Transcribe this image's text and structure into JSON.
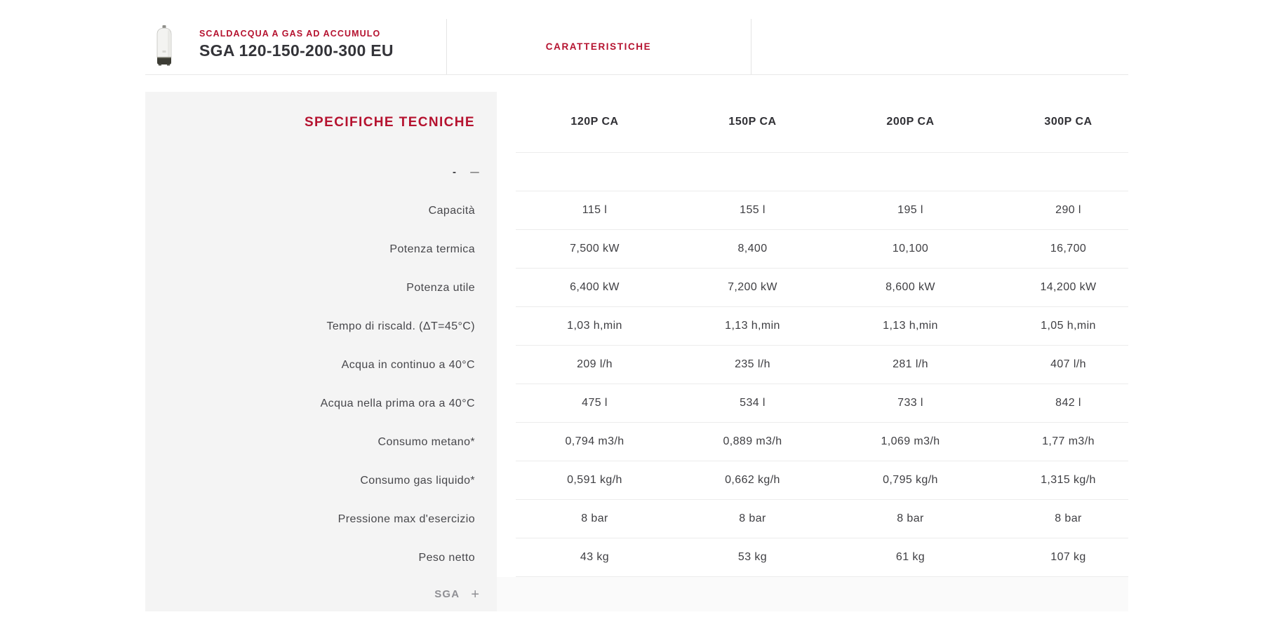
{
  "header": {
    "eyebrow": "SCALDACQUA A GAS AD ACCUMULO",
    "title": "SGA 120-150-200-300 EU",
    "tab": "CARATTERISTICHE"
  },
  "panel": {
    "title": "SPECIFICHE TECNICHE",
    "top_toggle_label": "-",
    "bottom_toggle_label": "SGA",
    "expand_glyph": "+"
  },
  "table": {
    "columns": [
      "120P CA",
      "150P CA",
      "200P CA",
      "300P CA"
    ],
    "rows": [
      {
        "label": "Capacità",
        "values": [
          "115 l",
          "155 l",
          "195 l",
          "290 l"
        ]
      },
      {
        "label": "Potenza termica",
        "values": [
          "7,500 kW",
          "8,400",
          "10,100",
          "16,700"
        ]
      },
      {
        "label": "Potenza utile",
        "values": [
          "6,400 kW",
          "7,200 kW",
          "8,600 kW",
          "14,200 kW"
        ]
      },
      {
        "label": "Tempo di riscald. (ΔT=45°C)",
        "values": [
          "1,03 h,min",
          "1,13 h,min",
          "1,13 h,min",
          "1,05 h,min"
        ]
      },
      {
        "label": "Acqua in continuo a 40°C",
        "values": [
          "209 l/h",
          "235 l/h",
          "281 l/h",
          "407 l/h"
        ]
      },
      {
        "label": "Acqua nella prima ora a 40°C",
        "values": [
          "475 l",
          "534 l",
          "733 l",
          "842 l"
        ]
      },
      {
        "label": "Consumo metano*",
        "values": [
          "0,794 m3/h",
          "0,889 m3/h",
          "1,069 m3/h",
          "1,77 m3/h"
        ]
      },
      {
        "label": "Consumo gas liquido*",
        "values": [
          "0,591 kg/h",
          "0,662 kg/h",
          "0,795 kg/h",
          "1,315 kg/h"
        ]
      },
      {
        "label": "Pressione max d'esercizio",
        "values": [
          "8 bar",
          "8 bar",
          "8 bar",
          "8 bar"
        ]
      },
      {
        "label": "Peso netto",
        "values": [
          "43 kg",
          "53 kg",
          "61 kg",
          "107 kg"
        ]
      }
    ]
  },
  "icons": {
    "collapse": "minus-icon",
    "expand": "plus-icon"
  },
  "colors": {
    "accent_red": "#b5122f",
    "title_dark": "#343439",
    "label_grey": "#47474b",
    "value_grey": "#3e3e42",
    "panel_bg": "#f4f4f4",
    "line": "#ececec",
    "muted_grey": "#8f8f94"
  }
}
